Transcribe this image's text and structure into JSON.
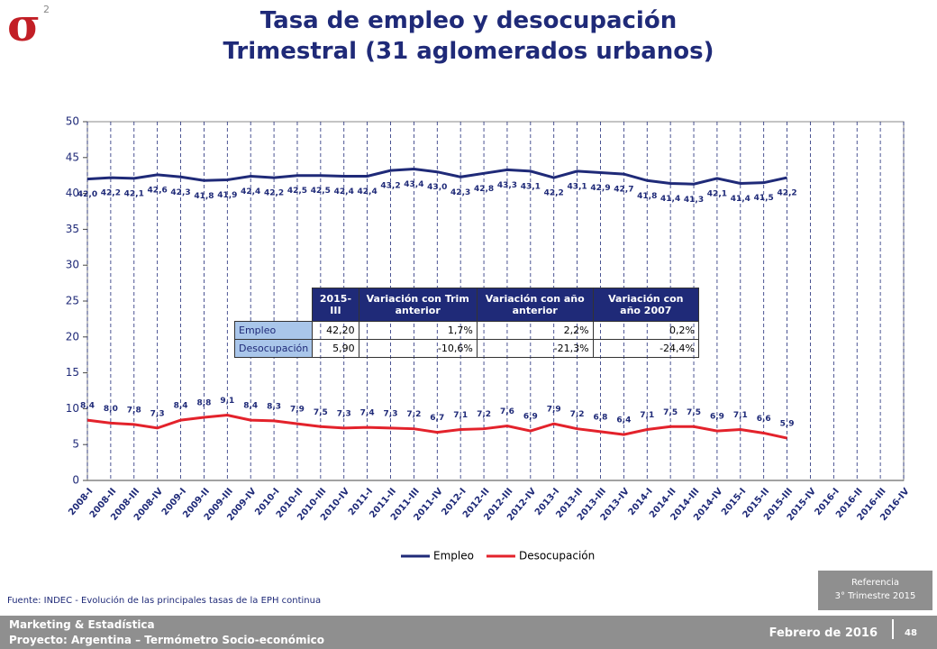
{
  "header": {
    "logo": "σ",
    "logo_sup": "2",
    "title_line1": "Tasa de empleo y desocupación",
    "title_line2": "Trimestral (31 aglomerados urbanos)"
  },
  "chart_data": {
    "type": "line",
    "categories": [
      "2008-I",
      "2008-II",
      "2008-III",
      "2008-IV",
      "2009-I",
      "2009-II",
      "2009-III",
      "2009-IV",
      "2010-I",
      "2010-II",
      "2010-III",
      "2010-IV",
      "2011-I",
      "2011-II",
      "2011-III",
      "2011-IV",
      "2012-I",
      "2012-II",
      "2012-III",
      "2012-IV",
      "2013-I",
      "2013-II",
      "2013-III",
      "2013-IV",
      "2014-I",
      "2014-II",
      "2014-III",
      "2014-IV",
      "2015-I",
      "2015-II",
      "2015-III",
      "2015-IV",
      "2016-I",
      "2016-II",
      "2016-III",
      "2016-IV"
    ],
    "series": [
      {
        "name": "Empleo",
        "color": "#1f2a78",
        "values": [
          42.0,
          42.2,
          42.1,
          42.6,
          42.3,
          41.8,
          41.9,
          42.4,
          42.2,
          42.5,
          42.5,
          42.4,
          42.4,
          43.2,
          43.4,
          43.0,
          42.3,
          42.8,
          43.3,
          43.1,
          42.2,
          43.1,
          42.9,
          42.7,
          41.8,
          41.4,
          41.3,
          42.1,
          41.4,
          41.5,
          42.2,
          null,
          null,
          null,
          null,
          null
        ],
        "value_labels": [
          "42,0",
          "42,2",
          "42,1",
          "42,6",
          "42,3",
          "41,8",
          "41,9",
          "42,4",
          "42,2",
          "42,5",
          "42,5",
          "42,4",
          "42,4",
          "43,2",
          "43,4",
          "43,0",
          "42,3",
          "42,8",
          "43,3",
          "43,1",
          "42,2",
          "43,1",
          "42,9",
          "42,7",
          "41,8",
          "41,4",
          "41,3",
          "42,1",
          "41,4",
          "41,5",
          "42,2",
          null,
          null,
          null,
          null,
          null
        ]
      },
      {
        "name": "Desocupación",
        "color": "#e3222b",
        "values": [
          8.4,
          8.0,
          7.8,
          7.3,
          8.4,
          8.8,
          9.1,
          8.4,
          8.3,
          7.9,
          7.5,
          7.3,
          7.4,
          7.3,
          7.2,
          6.7,
          7.1,
          7.2,
          7.6,
          6.9,
          7.9,
          7.2,
          6.8,
          6.4,
          7.1,
          7.5,
          7.5,
          6.9,
          7.1,
          6.6,
          5.9,
          null,
          null,
          null,
          null,
          null
        ],
        "value_labels": [
          "8,4",
          "8,0",
          "7,8",
          "7,3",
          "8,4",
          "8,8",
          "9,1",
          "8,4",
          "8,3",
          "7,9",
          "7,5",
          "7,3",
          "7,4",
          "7,3",
          "7,2",
          "6,7",
          "7,1",
          "7,2",
          "7,6",
          "6,9",
          "7,9",
          "7,2",
          "6,8",
          "6,4",
          "7,1",
          "7,5",
          "7,5",
          "6,9",
          "7,1",
          "6,6",
          "5,9",
          null,
          null,
          null,
          null,
          null
        ]
      }
    ],
    "ylim": [
      0,
      50
    ],
    "yticks": [
      0,
      5,
      10,
      15,
      20,
      25,
      30,
      35,
      40,
      45,
      50
    ],
    "grid": true,
    "legend": "bottom"
  },
  "table": {
    "columns": [
      "",
      "2015-III",
      "Variación con Trim anterior",
      "Variación con año anterior",
      "Variación con año 2007"
    ],
    "rows": [
      [
        "Empleo",
        "42,20",
        "1,7%",
        "2,2%",
        "0,2%"
      ],
      [
        "Desocupación",
        "5,90",
        "-10,6%",
        "-21,3%",
        "-24,4%"
      ]
    ]
  },
  "source": "Fuente: INDEC - Evolución de las principales tasas de la EPH continua",
  "reference": {
    "line1": "Referencia",
    "line2": "3° Trimestre 2015"
  },
  "footer": {
    "line1": "Marketing & Estadística",
    "line2": "Proyecto: Argentina – Termómetro Socio-económico",
    "date": "Febrero de 2016",
    "page": "48"
  }
}
